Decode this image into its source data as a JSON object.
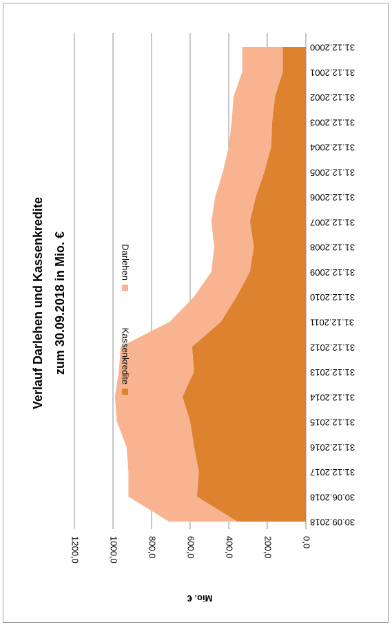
{
  "chart_data": {
    "type": "area",
    "stacked": true,
    "title": [
      "Verlauf Darlehen und Kassenkredite",
      "zum 30.09.2018 in Mio. €"
    ],
    "ylabel": "Mio. €",
    "ylim": [
      0,
      1200
    ],
    "yticks": [
      "0,0",
      "200,0",
      "400,0",
      "600,0",
      "800,0",
      "1000,0",
      "1200,0"
    ],
    "ytick_values": [
      0,
      200,
      400,
      600,
      800,
      1000,
      1200
    ],
    "categories": [
      "31.12.2000",
      "31.12.2001",
      "31.12.2002",
      "31.12.2003",
      "31.12.2004",
      "31.12.2005",
      "31.12.2006",
      "31.12.2007",
      "31.12.2008",
      "31.12.2009",
      "31.12.2010",
      "31.12.2011",
      "31.12.2012",
      "31.12.2013",
      "31.12.2014",
      "31.12.2015",
      "31.12.2016",
      "31.12.2017",
      "30.06.2018",
      "30.09.2018"
    ],
    "series": [
      {
        "name": "Kassenkredite",
        "color": "#dd822f",
        "values": [
          120,
          120,
          160,
          175,
          180,
          215,
          260,
          290,
          270,
          290,
          360,
          440,
          590,
          580,
          640,
          600,
          580,
          555,
          565,
          355
        ]
      },
      {
        "name": "Darlehen",
        "color": "#f8b490",
        "values": [
          210,
          210,
          215,
          210,
          220,
          215,
          210,
          200,
          205,
          200,
          220,
          265,
          370,
          390,
          350,
          380,
          350,
          365,
          355,
          355
        ]
      }
    ],
    "grid": true,
    "legend_position": "top",
    "rotation": "90deg-clockwise"
  }
}
